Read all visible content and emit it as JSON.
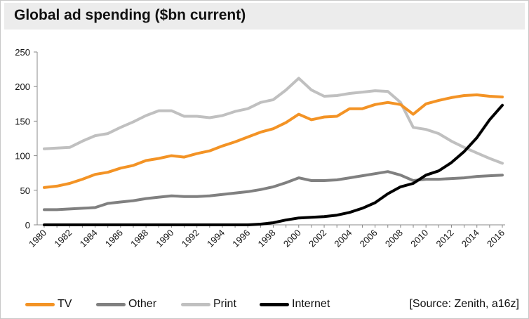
{
  "chart_data": {
    "type": "line",
    "title": "Global ad spending ($bn current)",
    "source": "[Source: Zenith, a16z]",
    "ylim": [
      0,
      250
    ],
    "yticks": [
      0,
      50,
      100,
      150,
      200,
      250
    ],
    "x": [
      1980,
      1981,
      1982,
      1983,
      1984,
      1985,
      1986,
      1987,
      1988,
      1989,
      1990,
      1991,
      1992,
      1993,
      1994,
      1995,
      1996,
      1997,
      1998,
      1999,
      2000,
      2001,
      2002,
      2003,
      2004,
      2005,
      2006,
      2007,
      2008,
      2009,
      2010,
      2011,
      2012,
      2013,
      2014,
      2015,
      2016
    ],
    "xtick_labels": [
      "1980",
      "1982",
      "1984",
      "1986",
      "1988",
      "1990",
      "1992",
      "1994",
      "1996",
      "1998",
      "2000",
      "2002",
      "2004",
      "2006",
      "2008",
      "2010",
      "2012",
      "2014",
      "2016"
    ],
    "grid": false,
    "legend_position": "bottom",
    "series": [
      {
        "name": "TV",
        "color": "#f39325",
        "values": [
          54,
          56,
          60,
          66,
          73,
          76,
          82,
          86,
          93,
          96,
          100,
          98,
          103,
          107,
          114,
          120,
          127,
          134,
          139,
          148,
          160,
          152,
          156,
          157,
          168,
          168,
          174,
          177,
          174,
          160,
          175,
          180,
          184,
          187,
          188,
          186,
          185
        ]
      },
      {
        "name": "Other",
        "color": "#808080",
        "values": [
          22,
          22,
          23,
          24,
          25,
          31,
          33,
          35,
          38,
          40,
          42,
          41,
          41,
          42,
          44,
          46,
          48,
          51,
          55,
          61,
          68,
          64,
          64,
          65,
          68,
          71,
          74,
          77,
          72,
          64,
          66,
          66,
          67,
          68,
          70,
          71,
          72
        ]
      },
      {
        "name": "Print",
        "color": "#c0c0c0",
        "values": [
          110,
          111,
          112,
          121,
          129,
          132,
          141,
          149,
          158,
          165,
          165,
          157,
          157,
          155,
          158,
          164,
          168,
          177,
          181,
          195,
          212,
          195,
          186,
          187,
          190,
          192,
          194,
          193,
          177,
          141,
          138,
          132,
          121,
          112,
          104,
          96,
          89
        ]
      },
      {
        "name": "Internet",
        "color": "#000000",
        "values": [
          0,
          0,
          0,
          0,
          0,
          0,
          0,
          0,
          0,
          0,
          0,
          0,
          0,
          0,
          0,
          0,
          0,
          1,
          3,
          7,
          10,
          11,
          12,
          14,
          18,
          24,
          32,
          45,
          55,
          60,
          72,
          78,
          90,
          106,
          126,
          152,
          173
        ]
      }
    ]
  }
}
